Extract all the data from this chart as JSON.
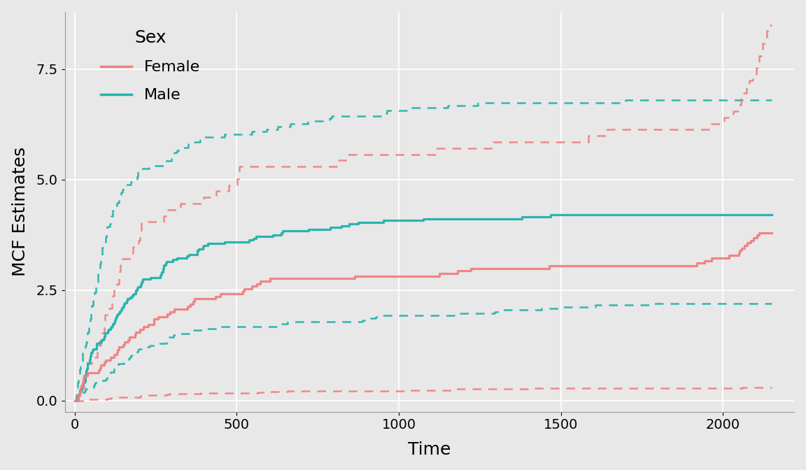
{
  "background_color": "#e8e8e8",
  "plot_bg_color": "#e8e8e8",
  "female_color": "#F08080",
  "male_color": "#20B2AA",
  "xlabel": "Time",
  "ylabel": "MCF Estimates",
  "xlim": [
    -30,
    2220
  ],
  "ylim": [
    -0.25,
    8.8
  ],
  "yticks": [
    0.0,
    2.5,
    5.0,
    7.5
  ],
  "xticks": [
    0,
    500,
    1000,
    1500,
    2000
  ],
  "legend_title": "Sex",
  "legend_entries": [
    "Female",
    "Male"
  ],
  "figsize": [
    11.52,
    6.72
  ],
  "dpi": 100
}
